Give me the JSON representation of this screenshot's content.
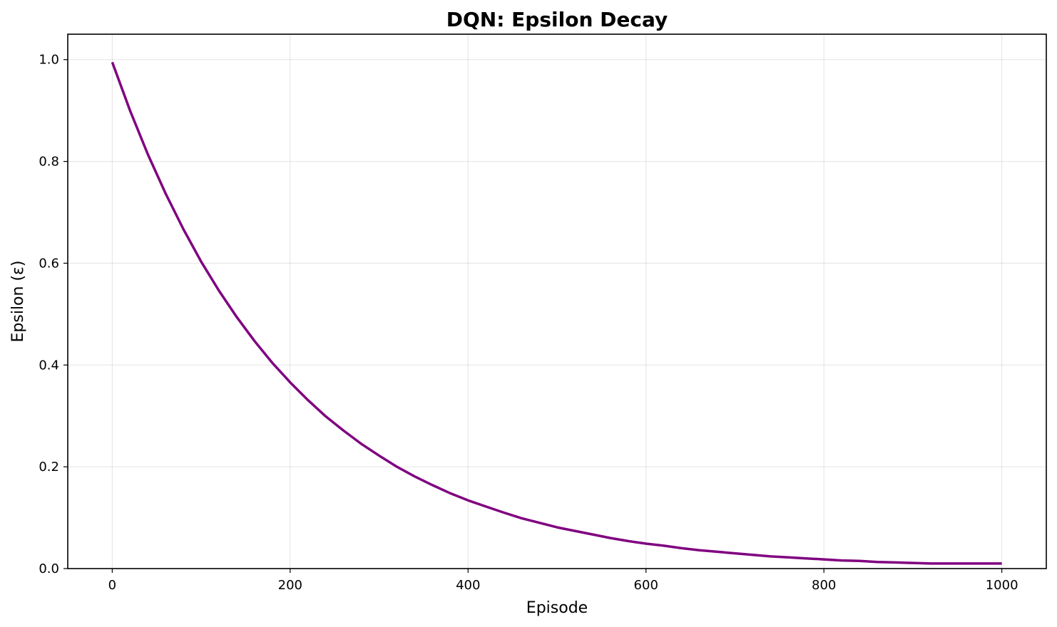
{
  "chart_data": {
    "type": "line",
    "title": "DQN: Epsilon Decay",
    "xlabel": "Episode",
    "ylabel": "Epsilon (ε)",
    "xlim": [
      -50,
      1050
    ],
    "ylim": [
      0.0,
      1.05
    ],
    "xticks": [
      0,
      200,
      400,
      600,
      800,
      1000
    ],
    "xtick_labels": [
      "0",
      "200",
      "400",
      "600",
      "800",
      "1000"
    ],
    "yticks": [
      0.0,
      0.2,
      0.4,
      0.6,
      0.8,
      1.0
    ],
    "ytick_labels": [
      "0.0",
      "0.2",
      "0.4",
      "0.6",
      "0.8",
      "1.0"
    ],
    "grid": true,
    "series": [
      {
        "color": "#800080",
        "x": [
          0,
          20,
          40,
          60,
          80,
          100,
          120,
          140,
          160,
          180,
          200,
          220,
          240,
          260,
          280,
          300,
          320,
          340,
          360,
          380,
          400,
          420,
          440,
          460,
          480,
          500,
          520,
          540,
          560,
          580,
          600,
          620,
          640,
          660,
          680,
          700,
          720,
          740,
          760,
          780,
          800,
          820,
          840,
          860,
          880,
          900,
          920,
          940,
          960,
          980,
          1000
        ],
        "y": [
          0.995,
          0.9,
          0.814,
          0.737,
          0.667,
          0.603,
          0.546,
          0.494,
          0.447,
          0.404,
          0.366,
          0.331,
          0.299,
          0.271,
          0.245,
          0.222,
          0.2,
          0.181,
          0.164,
          0.148,
          0.134,
          0.122,
          0.11,
          0.099,
          0.09,
          0.081,
          0.074,
          0.067,
          0.06,
          0.054,
          0.049,
          0.045,
          0.04,
          0.036,
          0.033,
          0.03,
          0.027,
          0.024,
          0.022,
          0.02,
          0.018,
          0.016,
          0.015,
          0.013,
          0.012,
          0.011,
          0.01,
          0.01,
          0.01,
          0.01,
          0.01
        ]
      }
    ]
  }
}
